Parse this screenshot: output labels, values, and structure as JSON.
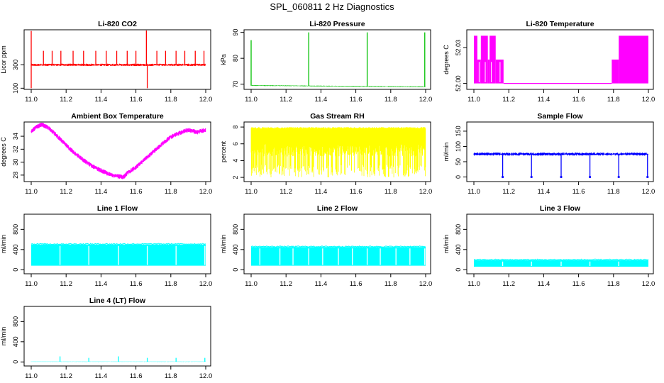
{
  "figure_title": "SPL_060811  2 Hz Diagnostics",
  "chart_data": [
    {
      "type": "line",
      "title": "Li-820 CO2",
      "ylabel": "Licor ppm",
      "color": "#ff0000",
      "x_ticks": [
        "11.0",
        "11.2",
        "11.4",
        "11.6",
        "11.8",
        "12.0"
      ],
      "xlim": [
        11.0,
        12.0
      ],
      "y_ticks": [
        {
          "v": 100,
          "label": "100"
        },
        {
          "v": 300,
          "label": "300"
        }
      ],
      "ylim": [
        90,
        600
      ],
      "baseline": 300,
      "noise": 10,
      "spikes": [
        {
          "x": 11.0,
          "y": 590
        },
        {
          "x": 11.0,
          "y": 100
        },
        {
          "x": 11.07,
          "y": 420
        },
        {
          "x": 11.12,
          "y": 420
        },
        {
          "x": 11.17,
          "y": 420
        },
        {
          "x": 11.24,
          "y": 420
        },
        {
          "x": 11.3,
          "y": 420
        },
        {
          "x": 11.37,
          "y": 420
        },
        {
          "x": 11.43,
          "y": 420
        },
        {
          "x": 11.49,
          "y": 420
        },
        {
          "x": 11.55,
          "y": 420
        },
        {
          "x": 11.6,
          "y": 420
        },
        {
          "x": 11.66,
          "y": 600
        },
        {
          "x": 11.665,
          "y": 100
        },
        {
          "x": 11.72,
          "y": 420
        },
        {
          "x": 11.77,
          "y": 420
        },
        {
          "x": 11.83,
          "y": 420
        },
        {
          "x": 11.88,
          "y": 420
        },
        {
          "x": 11.94,
          "y": 420
        },
        {
          "x": 11.99,
          "y": 420
        }
      ]
    },
    {
      "type": "line",
      "title": "Li-820 Pressure",
      "ylabel": "kPa",
      "color": "#00c000",
      "x_ticks": [
        "11.0",
        "11.2",
        "11.4",
        "11.6",
        "11.8",
        "12.0"
      ],
      "xlim": [
        11.0,
        12.0
      ],
      "y_ticks": [
        {
          "v": 70,
          "label": "70"
        },
        {
          "v": 80,
          "label": "80"
        },
        {
          "v": 90,
          "label": "90"
        }
      ],
      "ylim": [
        68,
        91
      ],
      "baseline_start": 69.5,
      "baseline_end": 69.0,
      "noise": 0.15,
      "spikes": [
        {
          "x": 11.0,
          "y": 87
        },
        {
          "x": 11.33,
          "y": 90
        },
        {
          "x": 11.665,
          "y": 90
        },
        {
          "x": 11.995,
          "y": 90
        }
      ]
    },
    {
      "type": "line",
      "title": "Li-820 Temperature",
      "ylabel": "degrees C",
      "color": "#ff00ff",
      "x_ticks": [
        "11.0",
        "11.2",
        "11.4",
        "11.6",
        "11.8",
        "12.0"
      ],
      "xlim": [
        11.0,
        12.0
      ],
      "y_ticks": [
        {
          "v": 52.0,
          "label": "52.00"
        },
        {
          "v": 52.03,
          "label": "52.03"
        }
      ],
      "ylim": [
        51.995,
        52.045
      ],
      "levels": [
        52.0,
        52.01,
        52.02,
        52.03,
        52.04
      ],
      "segments": [
        {
          "x0": 11.0,
          "x1": 11.02,
          "lo": 52.0,
          "hi": 52.04
        },
        {
          "x0": 11.02,
          "x1": 11.04,
          "lo": 52.0,
          "hi": 52.02
        },
        {
          "x0": 11.04,
          "x1": 11.08,
          "lo": 52.0,
          "hi": 52.04
        },
        {
          "x0": 11.08,
          "x1": 11.09,
          "lo": 52.0,
          "hi": 52.02
        },
        {
          "x0": 11.09,
          "x1": 11.125,
          "lo": 52.0,
          "hi": 52.04
        },
        {
          "x0": 11.125,
          "x1": 11.17,
          "lo": 52.0,
          "hi": 52.02
        },
        {
          "x0": 11.17,
          "x1": 11.79,
          "lo": 52.0,
          "hi": 52.0
        },
        {
          "x0": 11.79,
          "x1": 11.83,
          "lo": 52.0,
          "hi": 52.02
        },
        {
          "x0": 11.83,
          "x1": 12.0,
          "lo": 52.0,
          "hi": 52.04
        }
      ]
    },
    {
      "type": "line",
      "title": "Ambient Box Temperature",
      "ylabel": "degrees C",
      "color": "#ff00ff",
      "x_ticks": [
        "11.0",
        "11.2",
        "11.4",
        "11.6",
        "11.8",
        "12.0"
      ],
      "xlim": [
        11.0,
        12.0
      ],
      "y_ticks": [
        {
          "v": 28,
          "label": "28"
        },
        {
          "v": 30,
          "label": "30"
        },
        {
          "v": 32,
          "label": "32"
        },
        {
          "v": 34,
          "label": "34"
        }
      ],
      "ylim": [
        27.0,
        36.2
      ],
      "x": [
        11.0,
        11.03,
        11.06,
        11.1,
        11.15,
        11.2,
        11.25,
        11.3,
        11.35,
        11.4,
        11.45,
        11.5,
        11.53,
        11.55,
        11.6,
        11.65,
        11.7,
        11.75,
        11.8,
        11.85,
        11.9,
        11.95,
        12.0
      ],
      "y": [
        34.8,
        35.4,
        35.8,
        35.3,
        34.0,
        32.6,
        31.4,
        30.3,
        29.4,
        28.7,
        28.1,
        27.8,
        27.7,
        28.3,
        29.2,
        30.4,
        31.6,
        32.8,
        33.9,
        34.5,
        35.0,
        34.6,
        35.0
      ],
      "noise": 0.35
    },
    {
      "type": "line",
      "title": "Gas Stream RH",
      "ylabel": "percent",
      "color": "#ffff00",
      "x_ticks": [
        "11.0",
        "11.2",
        "11.4",
        "11.6",
        "11.8",
        "12.0"
      ],
      "xlim": [
        11.0,
        12.0
      ],
      "y_ticks": [
        {
          "v": 2,
          "label": "2"
        },
        {
          "v": 4,
          "label": "4"
        },
        {
          "v": 6,
          "label": "6"
        },
        {
          "v": 8,
          "label": "8"
        }
      ],
      "ylim": [
        1.5,
        8.6
      ],
      "band_top": [
        7.8,
        8.0
      ],
      "band_low": 6.0,
      "dip_min": 2.0
    },
    {
      "type": "line",
      "title": "Sample Flow",
      "ylabel": "ml/min",
      "color": "#0000ff",
      "x_ticks": [
        "11.0",
        "11.2",
        "11.4",
        "11.6",
        "11.8",
        "12.0"
      ],
      "xlim": [
        11.0,
        12.0
      ],
      "y_ticks": [
        {
          "v": 0,
          "label": "0"
        },
        {
          "v": 50,
          "label": "50"
        },
        {
          "v": 100,
          "label": "100"
        },
        {
          "v": 150,
          "label": "150"
        }
      ],
      "ylim": [
        -15,
        180
      ],
      "baseline": 75,
      "noise": 5,
      "dips": [
        {
          "x": 11.165,
          "y": 0
        },
        {
          "x": 11.33,
          "y": 0
        },
        {
          "x": 11.5,
          "y": 0
        },
        {
          "x": 11.665,
          "y": 0
        },
        {
          "x": 11.83,
          "y": 0
        },
        {
          "x": 11.995,
          "y": 0
        }
      ]
    },
    {
      "type": "area",
      "title": "Line 1 Flow",
      "ylabel": "ml/min",
      "color": "#00ffff",
      "x_ticks": [
        "11.0",
        "11.2",
        "11.4",
        "11.6",
        "11.8",
        "12.0"
      ],
      "xlim": [
        11.0,
        12.0
      ],
      "y_ticks": [
        {
          "v": 0,
          "label": "0"
        },
        {
          "v": 400,
          "label": "400"
        },
        {
          "v": 800,
          "label": "800"
        }
      ],
      "ylim": [
        -80,
        1100
      ],
      "low": 80,
      "high": 500,
      "gaps": [
        11.165,
        11.33,
        11.5,
        11.665,
        11.83,
        11.995
      ]
    },
    {
      "type": "area",
      "title": "Line 2 Flow",
      "ylabel": "ml/min",
      "color": "#00ffff",
      "x_ticks": [
        "11.0",
        "11.2",
        "11.4",
        "11.6",
        "11.8",
        "12.0"
      ],
      "xlim": [
        11.0,
        12.0
      ],
      "y_ticks": [
        {
          "v": 0,
          "label": "0"
        },
        {
          "v": 400,
          "label": "400"
        },
        {
          "v": 800,
          "label": "800"
        }
      ],
      "ylim": [
        -80,
        1100
      ],
      "low": 80,
      "high": 450,
      "gaps": [
        11.05,
        11.165,
        11.24,
        11.33,
        11.41,
        11.5,
        11.58,
        11.665,
        11.74,
        11.83,
        11.91,
        11.995
      ]
    },
    {
      "type": "area",
      "title": "Line 3 Flow",
      "ylabel": "ml/min",
      "color": "#00ffff",
      "x_ticks": [
        "11.0",
        "11.2",
        "11.4",
        "11.6",
        "11.8",
        "12.0"
      ],
      "xlim": [
        11.0,
        12.0
      ],
      "y_ticks": [
        {
          "v": 0,
          "label": "0"
        },
        {
          "v": 400,
          "label": "400"
        },
        {
          "v": 800,
          "label": "800"
        }
      ],
      "ylim": [
        -80,
        1100
      ],
      "low": 60,
      "high": 190,
      "gaps": [
        11.165,
        11.33,
        11.5,
        11.665,
        11.83
      ]
    },
    {
      "type": "line",
      "title": "Line 4 (LT) Flow",
      "ylabel": "ml/min",
      "color": "#00ffff",
      "x_ticks": [
        "11.0",
        "11.2",
        "11.4",
        "11.6",
        "11.8",
        "12.0"
      ],
      "xlim": [
        11.0,
        12.0
      ],
      "y_ticks": [
        {
          "v": 0,
          "label": "0"
        },
        {
          "v": 400,
          "label": "400"
        },
        {
          "v": 800,
          "label": "800"
        }
      ],
      "ylim": [
        -80,
        1100
      ],
      "baseline": 5,
      "noise": 3,
      "spikes": [
        {
          "x": 11.165,
          "y": 110
        },
        {
          "x": 11.33,
          "y": 80
        },
        {
          "x": 11.5,
          "y": 110
        },
        {
          "x": 11.665,
          "y": 80
        },
        {
          "x": 11.83,
          "y": 80
        },
        {
          "x": 11.995,
          "y": 80
        }
      ]
    }
  ]
}
